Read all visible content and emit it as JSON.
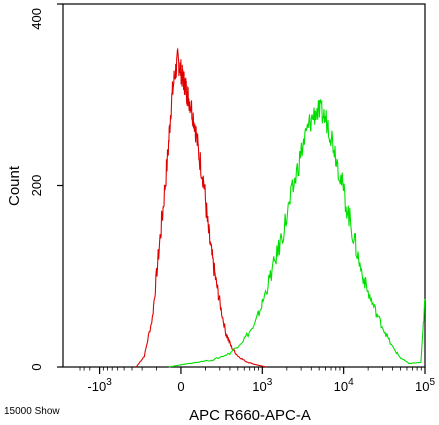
{
  "chart_data": {
    "type": "line",
    "xlabel": "APC R660-APC-A",
    "ylabel": "Count",
    "ylim": [
      0,
      400
    ],
    "y_ticks": [
      {
        "value": 0,
        "label": "0"
      },
      {
        "value": 200,
        "label": "200"
      },
      {
        "value": 400,
        "label": "400"
      }
    ],
    "x_scale": "biexponential",
    "x_ticks": [
      {
        "pos": -1,
        "base": "-10",
        "exp": "3"
      },
      {
        "pos": 0,
        "base": "0",
        "exp": ""
      },
      {
        "pos": 1,
        "base": "10",
        "exp": "3"
      },
      {
        "pos": 2,
        "base": "10",
        "exp": "4"
      },
      {
        "pos": 3,
        "base": "10",
        "exp": "5"
      }
    ],
    "xlim_positions": [
      -1.45,
      3.0
    ],
    "grid": false,
    "footer": "15000 Show",
    "series": [
      {
        "color": "#e00000",
        "x": [
          -0.55,
          -0.45,
          -0.35,
          -0.28,
          -0.22,
          -0.16,
          -0.12,
          -0.08,
          -0.04,
          -0.01,
          0.02,
          0.05,
          0.08,
          0.12,
          0.17,
          0.22,
          0.28,
          0.33,
          0.38,
          0.43,
          0.48,
          0.55,
          0.62,
          0.7,
          0.8,
          0.9,
          1.0,
          1.05
        ],
        "y": [
          0,
          12,
          55,
          120,
          175,
          235,
          290,
          320,
          338,
          330,
          318,
          312,
          300,
          290,
          268,
          235,
          205,
          155,
          122,
          95,
          70,
          38,
          22,
          12,
          6,
          3,
          1,
          0
        ]
      },
      {
        "color": "#00e000",
        "x": [
          -0.15,
          0.1,
          0.4,
          0.6,
          0.75,
          0.9,
          1.0,
          1.1,
          1.2,
          1.3,
          1.4,
          1.5,
          1.58,
          1.66,
          1.73,
          1.8,
          1.87,
          1.95,
          2.03,
          2.12,
          2.2,
          2.3,
          2.4,
          2.5,
          2.6,
          2.7,
          2.8,
          2.95,
          3.0
        ],
        "y": [
          0,
          4,
          8,
          15,
          28,
          45,
          70,
          100,
          130,
          165,
          205,
          245,
          268,
          282,
          280,
          270,
          248,
          215,
          180,
          145,
          112,
          82,
          60,
          40,
          22,
          10,
          4,
          5,
          75
        ]
      }
    ]
  }
}
